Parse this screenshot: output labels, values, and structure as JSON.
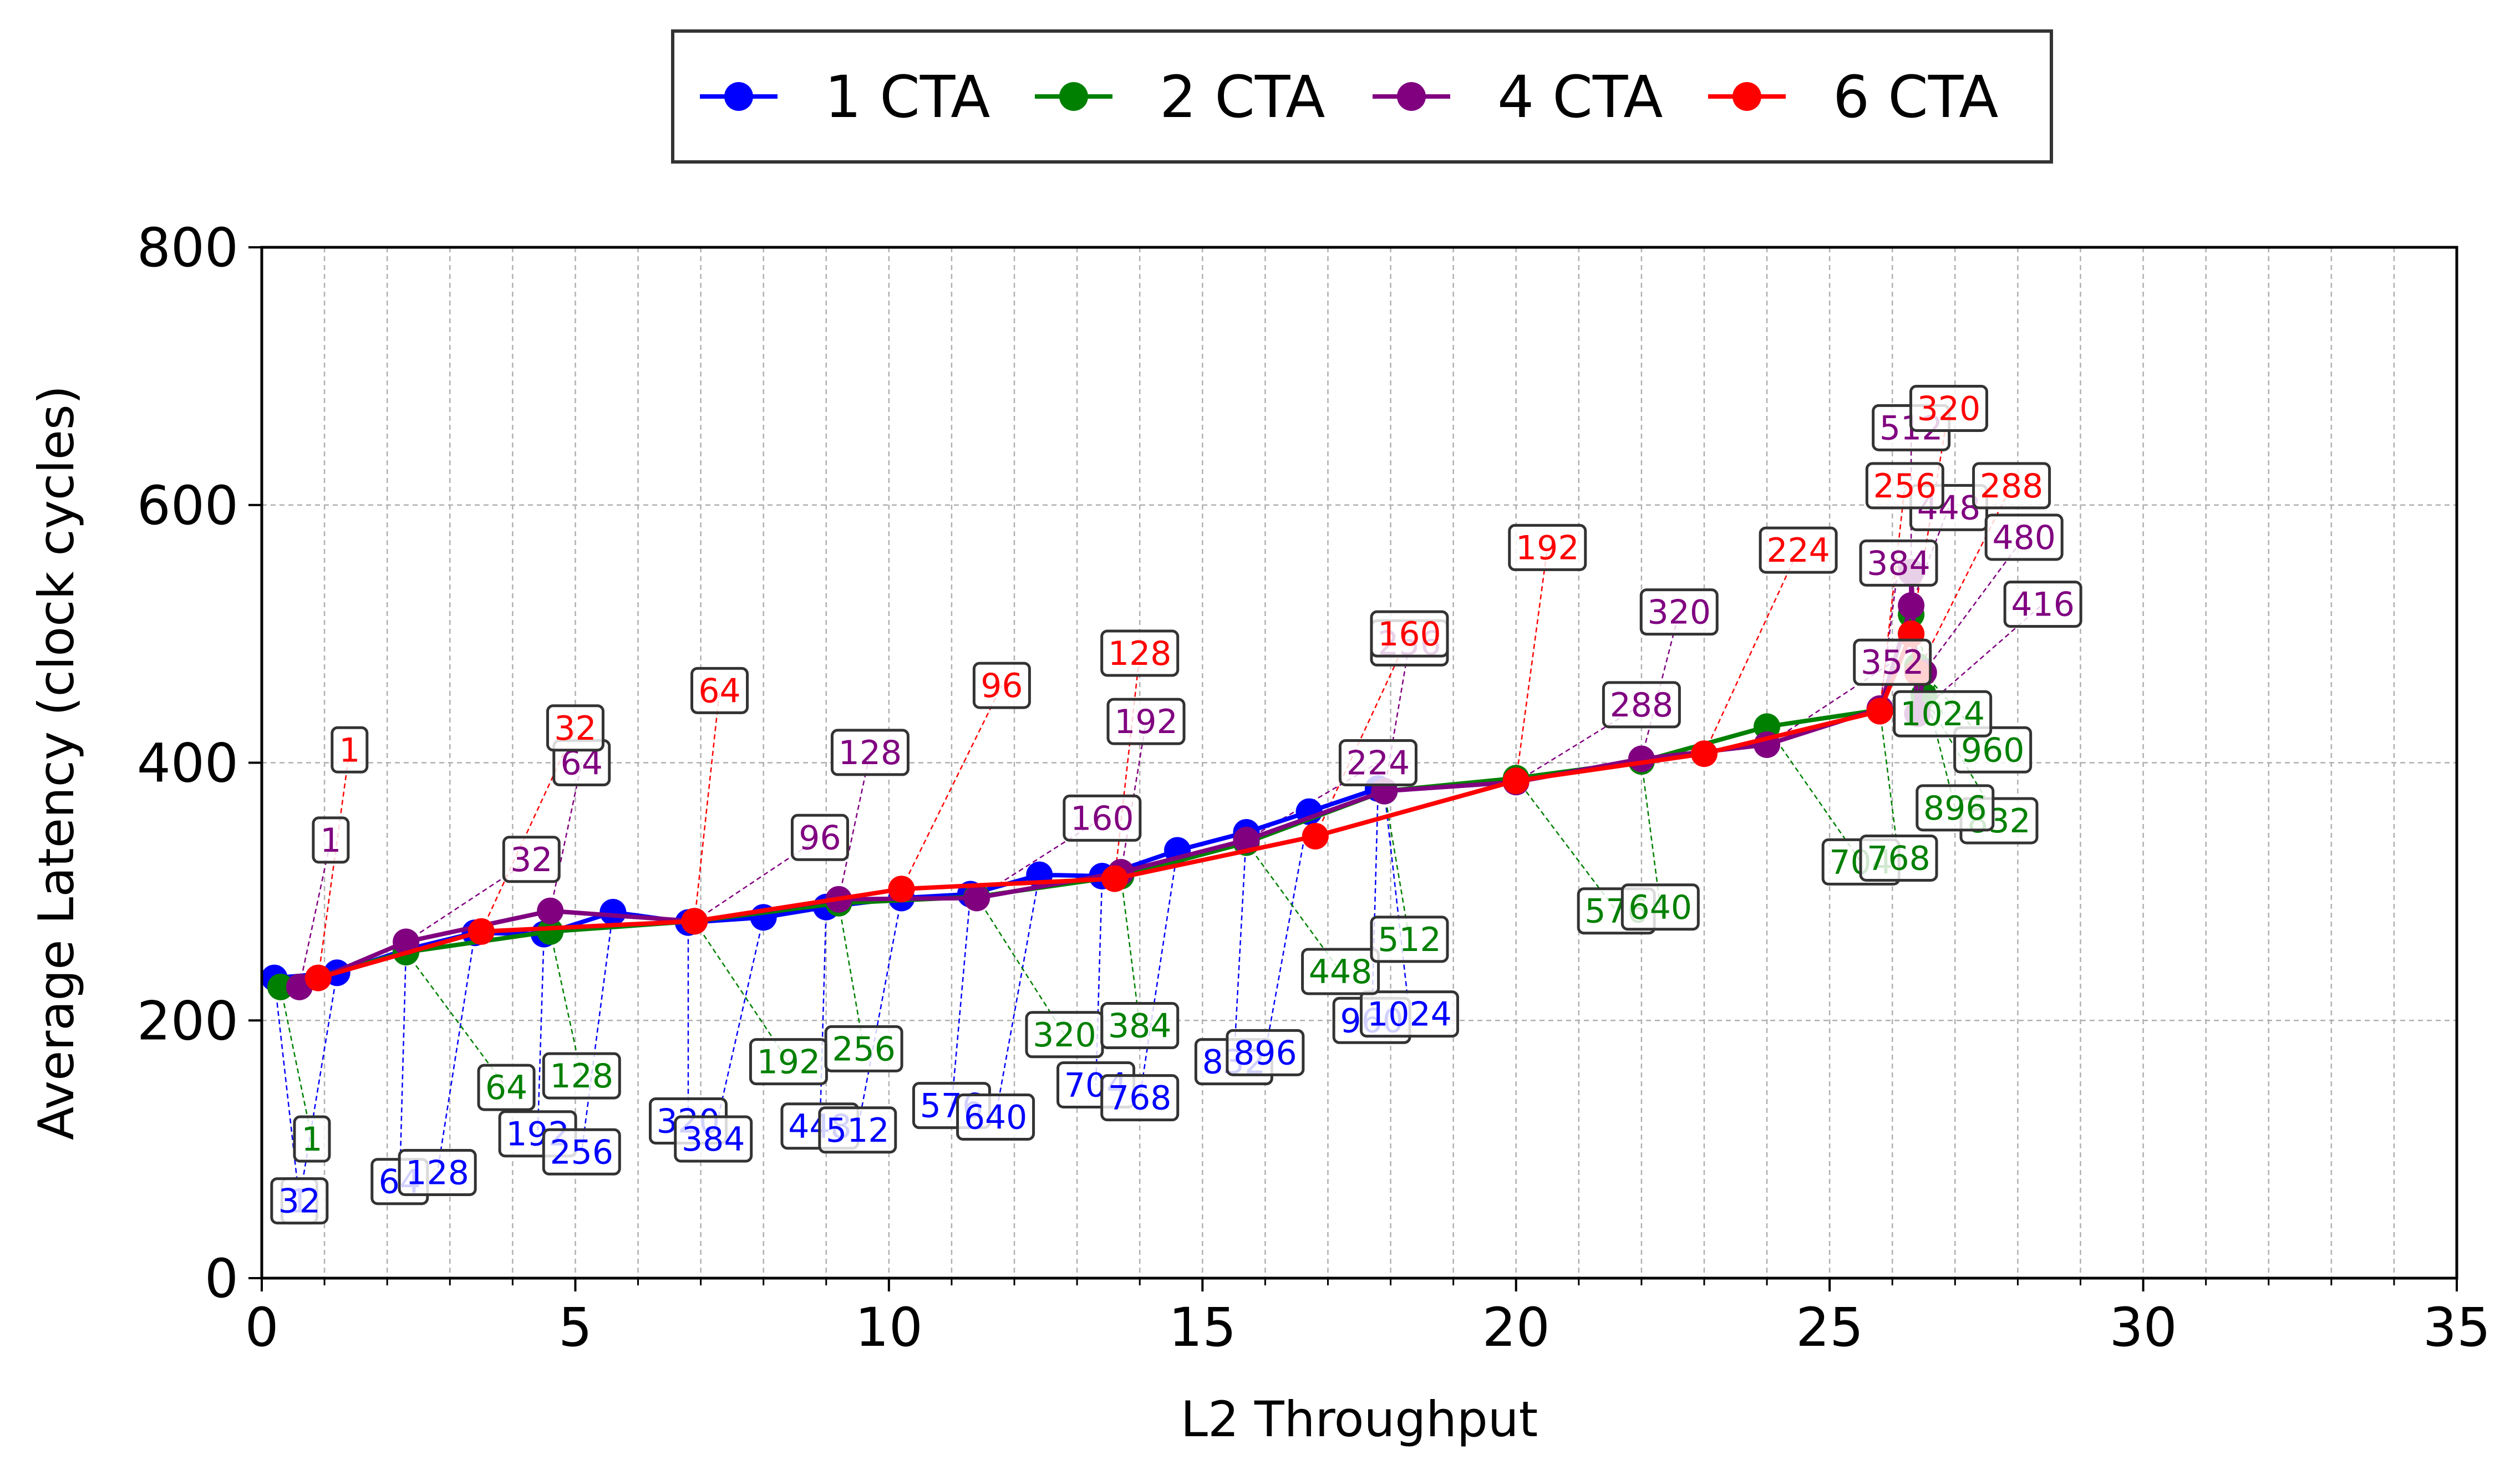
{
  "chart_data": {
    "type": "line",
    "title": "",
    "xlabel": "L2 Throughput",
    "ylabel": "Average Latency (clock cycles)",
    "xlim": [
      0,
      35
    ],
    "ylim": [
      0,
      800
    ],
    "x_ticks": [
      "0",
      "5",
      "10",
      "15",
      "20",
      "25",
      "30",
      "35"
    ],
    "y_ticks": [
      "0",
      "200",
      "400",
      "600",
      "800"
    ],
    "grid": true,
    "legend": {
      "placement": "top-center-outside"
    },
    "series": [
      {
        "name": "1 CTA",
        "color": "#0000ff",
        "marker": "circle",
        "points": [
          {
            "label": "1",
            "x": 0.2,
            "y": 233,
            "lx": 0.6,
            "ly": 60
          },
          {
            "label": "32",
            "x": 1.2,
            "y": 237,
            "lx": 0.6,
            "ly": 60
          },
          {
            "label": "64",
            "x": 2.3,
            "y": 255,
            "lx": 2.2,
            "ly": 75
          },
          {
            "label": "128",
            "x": 3.4,
            "y": 268,
            "lx": 2.8,
            "ly": 82
          },
          {
            "label": "192",
            "x": 4.5,
            "y": 267,
            "lx": 4.4,
            "ly": 112
          },
          {
            "label": "256",
            "x": 5.6,
            "y": 284,
            "lx": 5.1,
            "ly": 98
          },
          {
            "label": "320",
            "x": 6.8,
            "y": 276,
            "lx": 6.8,
            "ly": 122
          },
          {
            "label": "384",
            "x": 8.0,
            "y": 280,
            "lx": 7.2,
            "ly": 108
          },
          {
            "label": "448",
            "x": 9.0,
            "y": 288,
            "lx": 8.9,
            "ly": 118
          },
          {
            "label": "512",
            "x": 10.2,
            "y": 295,
            "lx": 9.5,
            "ly": 115
          },
          {
            "label": "576",
            "x": 11.3,
            "y": 298,
            "lx": 11.0,
            "ly": 134
          },
          {
            "label": "640",
            "x": 12.4,
            "y": 313,
            "lx": 11.7,
            "ly": 125
          },
          {
            "label": "704",
            "x": 13.4,
            "y": 312,
            "lx": 13.3,
            "ly": 150
          },
          {
            "label": "768",
            "x": 14.6,
            "y": 332,
            "lx": 14.0,
            "ly": 140
          },
          {
            "label": "832",
            "x": 15.7,
            "y": 346,
            "lx": 15.5,
            "ly": 168
          },
          {
            "label": "896",
            "x": 16.7,
            "y": 362,
            "lx": 16.0,
            "ly": 175
          },
          {
            "label": "960",
            "x": 17.8,
            "y": 380,
            "lx": 17.7,
            "ly": 200
          },
          {
            "label": "1024",
            "x": 17.9,
            "y": 378,
            "lx": 18.3,
            "ly": 205
          }
        ]
      },
      {
        "name": "2 CTA",
        "color": "#008000",
        "marker": "circle",
        "points": [
          {
            "label": "1",
            "x": 0.3,
            "y": 226,
            "lx": 0.8,
            "ly": 108
          },
          {
            "label": "64",
            "x": 2.3,
            "y": 253,
            "lx": 3.9,
            "ly": 148
          },
          {
            "label": "128",
            "x": 4.6,
            "y": 269,
            "lx": 5.1,
            "ly": 157
          },
          {
            "label": "192",
            "x": 6.9,
            "y": 277,
            "lx": 8.4,
            "ly": 168
          },
          {
            "label": "256",
            "x": 9.2,
            "y": 291,
            "lx": 9.6,
            "ly": 178
          },
          {
            "label": "320",
            "x": 11.4,
            "y": 296,
            "lx": 12.8,
            "ly": 189
          },
          {
            "label": "384",
            "x": 13.7,
            "y": 312,
            "lx": 14.0,
            "ly": 196
          },
          {
            "label": "448",
            "x": 15.7,
            "y": 338,
            "lx": 17.2,
            "ly": 238
          },
          {
            "label": "512",
            "x": 17.9,
            "y": 378,
            "lx": 18.3,
            "ly": 263
          },
          {
            "label": "576",
            "x": 20.0,
            "y": 388,
            "lx": 21.6,
            "ly": 285
          },
          {
            "label": "640",
            "x": 22.0,
            "y": 401,
            "lx": 22.3,
            "ly": 288
          },
          {
            "label": "704",
            "x": 24.0,
            "y": 428,
            "lx": 25.5,
            "ly": 323
          },
          {
            "label": "768",
            "x": 25.8,
            "y": 441,
            "lx": 26.1,
            "ly": 326
          },
          {
            "label": "832",
            "x": 26.5,
            "y": 452,
            "lx": 27.7,
            "ly": 355
          },
          {
            "label": "896",
            "x": 26.3,
            "y": 500,
            "lx": 27.0,
            "ly": 365
          },
          {
            "label": "960",
            "x": 26.4,
            "y": 475,
            "lx": 27.6,
            "ly": 410
          },
          {
            "label": "1024",
            "x": 26.3,
            "y": 515,
            "lx": 26.8,
            "ly": 438
          }
        ]
      },
      {
        "name": "4 CTA",
        "color": "#800080",
        "marker": "circle",
        "points": [
          {
            "label": "1",
            "x": 0.6,
            "y": 226,
            "lx": 1.1,
            "ly": 340
          },
          {
            "label": "32",
            "x": 2.3,
            "y": 261,
            "lx": 4.3,
            "ly": 325
          },
          {
            "label": "64",
            "x": 4.6,
            "y": 285,
            "lx": 5.1,
            "ly": 400
          },
          {
            "label": "96",
            "x": 6.9,
            "y": 277,
            "lx": 8.9,
            "ly": 342
          },
          {
            "label": "128",
            "x": 9.2,
            "y": 294,
            "lx": 9.7,
            "ly": 408
          },
          {
            "label": "160",
            "x": 11.4,
            "y": 295,
            "lx": 13.4,
            "ly": 357
          },
          {
            "label": "192",
            "x": 13.7,
            "y": 315,
            "lx": 14.1,
            "ly": 432
          },
          {
            "label": "224",
            "x": 15.7,
            "y": 340,
            "lx": 17.8,
            "ly": 400
          },
          {
            "label": "256",
            "x": 17.9,
            "y": 378,
            "lx": 18.3,
            "ly": 493
          },
          {
            "label": "288",
            "x": 20.0,
            "y": 385,
            "lx": 22.0,
            "ly": 445
          },
          {
            "label": "320",
            "x": 22.0,
            "y": 403,
            "lx": 22.6,
            "ly": 517
          },
          {
            "label": "352",
            "x": 24.0,
            "y": 414,
            "lx": 26.0,
            "ly": 478
          },
          {
            "label": "384",
            "x": 25.8,
            "y": 442,
            "lx": 26.1,
            "ly": 555
          },
          {
            "label": "416",
            "x": 26.4,
            "y": 438,
            "lx": 28.4,
            "ly": 523
          },
          {
            "label": "448",
            "x": 26.3,
            "y": 522,
            "lx": 26.9,
            "ly": 598
          },
          {
            "label": "480",
            "x": 26.5,
            "y": 470,
            "lx": 28.1,
            "ly": 575
          },
          {
            "label": "512",
            "x": 26.3,
            "y": 548,
            "lx": 26.3,
            "ly": 660
          }
        ]
      },
      {
        "name": "6 CTA",
        "color": "#ff0000",
        "marker": "circle",
        "points": [
          {
            "label": "1",
            "x": 0.9,
            "y": 233,
            "lx": 1.4,
            "ly": 410
          },
          {
            "label": "32",
            "x": 3.5,
            "y": 269,
            "lx": 5.0,
            "ly": 427
          },
          {
            "label": "64",
            "x": 6.9,
            "y": 277,
            "lx": 7.3,
            "ly": 456
          },
          {
            "label": "96",
            "x": 10.2,
            "y": 302,
            "lx": 11.8,
            "ly": 460
          },
          {
            "label": "128",
            "x": 13.6,
            "y": 310,
            "lx": 14.0,
            "ly": 485
          },
          {
            "label": "160",
            "x": 16.8,
            "y": 343,
            "lx": 18.3,
            "ly": 500
          },
          {
            "label": "192",
            "x": 20.0,
            "y": 386,
            "lx": 20.5,
            "ly": 567
          },
          {
            "label": "224",
            "x": 23.0,
            "y": 407,
            "lx": 24.5,
            "ly": 565
          },
          {
            "label": "256",
            "x": 25.8,
            "y": 440,
            "lx": 26.2,
            "ly": 615
          },
          {
            "label": "288",
            "x": 26.4,
            "y": 470,
            "lx": 27.9,
            "ly": 615
          },
          {
            "label": "320",
            "x": 26.3,
            "y": 500,
            "lx": 26.9,
            "ly": 675
          }
        ]
      }
    ]
  }
}
